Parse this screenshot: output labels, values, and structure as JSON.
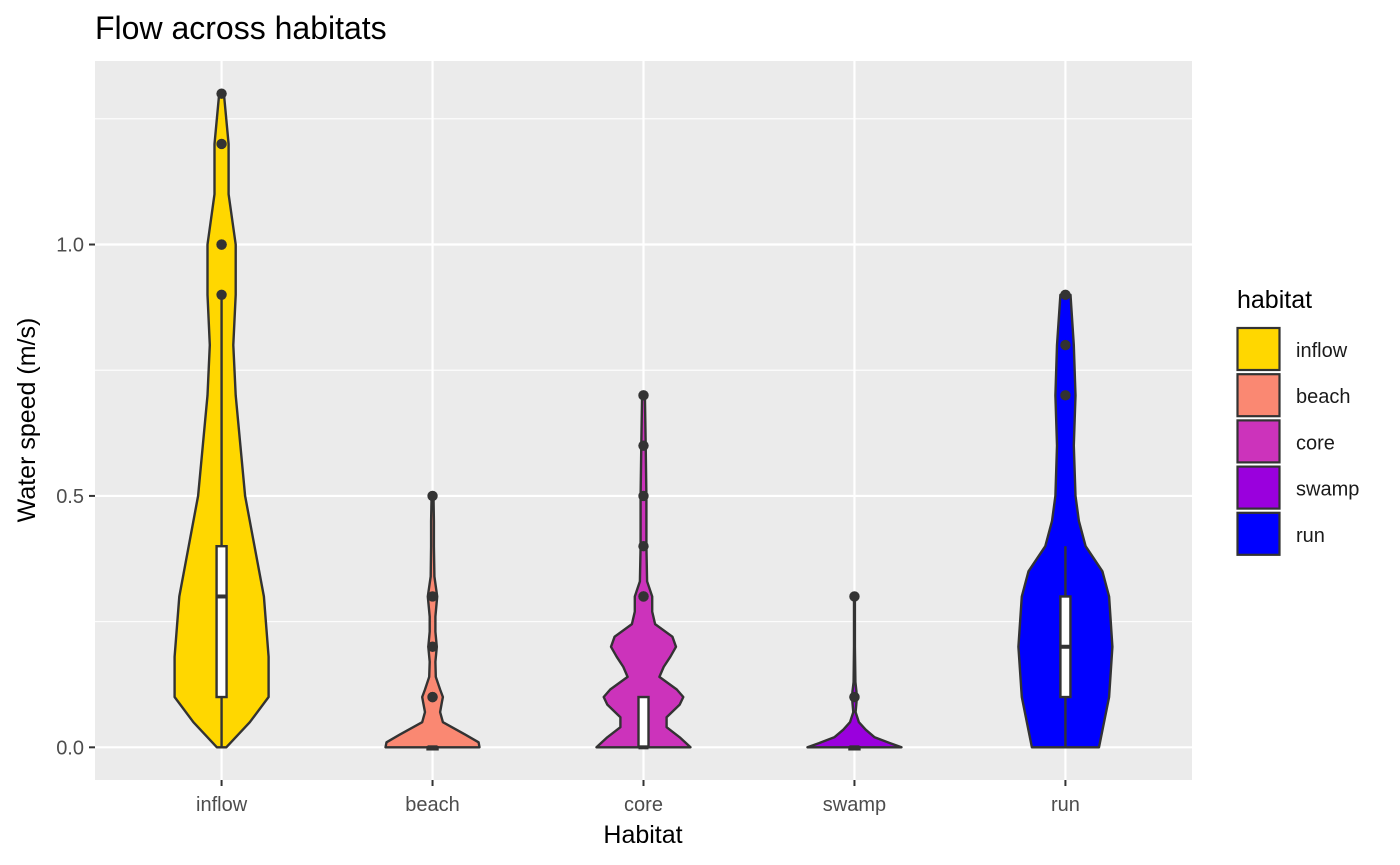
{
  "chart_data": {
    "type": "violin",
    "title": "Flow across habitats",
    "xlabel": "Habitat",
    "ylabel": "Water speed (m/s)",
    "ylim": [
      -0.065,
      1.365
    ],
    "yticks": [
      0.0,
      0.5,
      1.0
    ],
    "ytick_labels": [
      "0.0",
      "0.5",
      "1.0"
    ],
    "grid": true,
    "legend": {
      "title": "habitat",
      "position": "right",
      "entries": [
        "inflow",
        "beach",
        "core",
        "swamp",
        "run"
      ]
    },
    "categories": [
      "inflow",
      "beach",
      "core",
      "swamp",
      "run"
    ],
    "colors": {
      "inflow": "#FFD700",
      "beach": "#FA8872",
      "core": "#CC33BB",
      "swamp": "#9A00DD",
      "run": "#0000FF"
    },
    "series": [
      {
        "name": "inflow",
        "box": {
          "q1": 0.1,
          "median": 0.3,
          "q3": 0.4,
          "whisker_low": 0.0,
          "whisker_high": 0.9
        },
        "outliers": [
          1.3,
          1.2,
          1.0,
          1.0,
          0.9
        ],
        "density": [
          [
            0.0,
            0.01
          ],
          [
            0.05,
            0.06
          ],
          [
            0.1,
            0.1
          ],
          [
            0.18,
            0.1
          ],
          [
            0.3,
            0.09
          ],
          [
            0.4,
            0.07
          ],
          [
            0.5,
            0.05
          ],
          [
            0.6,
            0.04
          ],
          [
            0.7,
            0.03
          ],
          [
            0.8,
            0.025
          ],
          [
            0.9,
            0.03
          ],
          [
            1.0,
            0.03
          ],
          [
            1.1,
            0.015
          ],
          [
            1.2,
            0.015
          ],
          [
            1.3,
            0.005
          ]
        ]
      },
      {
        "name": "beach",
        "box": {
          "q1": 0.0,
          "median": 0.0,
          "q3": 0.0,
          "whisker_low": 0.0,
          "whisker_high": 0.0
        },
        "outliers": [
          0.5,
          0.3,
          0.2,
          0.1,
          0.1
        ],
        "density": [
          [
            0.0,
            1.0
          ],
          [
            0.01,
            0.98
          ],
          [
            0.025,
            0.7
          ],
          [
            0.05,
            0.22
          ],
          [
            0.07,
            0.16
          ],
          [
            0.09,
            0.2
          ],
          [
            0.1,
            0.22
          ],
          [
            0.115,
            0.16
          ],
          [
            0.14,
            0.07
          ],
          [
            0.17,
            0.06
          ],
          [
            0.2,
            0.09
          ],
          [
            0.23,
            0.06
          ],
          [
            0.26,
            0.06
          ],
          [
            0.3,
            0.1
          ],
          [
            0.34,
            0.04
          ],
          [
            0.4,
            0.03
          ],
          [
            0.45,
            0.03
          ],
          [
            0.5,
            0.02
          ]
        ]
      },
      {
        "name": "core",
        "box": {
          "q1": 0.0,
          "median": 0.0,
          "q3": 0.1,
          "whisker_low": 0.0,
          "whisker_high": 0.1
        },
        "outliers": [
          0.7,
          0.6,
          0.5,
          0.4,
          0.3,
          0.3
        ],
        "density": [
          [
            0.0,
            0.65
          ],
          [
            0.02,
            0.5
          ],
          [
            0.04,
            0.32
          ],
          [
            0.06,
            0.32
          ],
          [
            0.085,
            0.5
          ],
          [
            0.1,
            0.55
          ],
          [
            0.115,
            0.46
          ],
          [
            0.14,
            0.22
          ],
          [
            0.16,
            0.28
          ],
          [
            0.18,
            0.37
          ],
          [
            0.2,
            0.45
          ],
          [
            0.22,
            0.4
          ],
          [
            0.245,
            0.16
          ],
          [
            0.27,
            0.12
          ],
          [
            0.3,
            0.12
          ],
          [
            0.33,
            0.05
          ],
          [
            0.4,
            0.04
          ],
          [
            0.5,
            0.04
          ],
          [
            0.6,
            0.03
          ],
          [
            0.7,
            0.02
          ]
        ]
      },
      {
        "name": "swamp",
        "box": {
          "q1": 0.0,
          "median": 0.0,
          "q3": 0.0,
          "whisker_low": 0.0,
          "whisker_high": 0.0
        },
        "outliers": [
          0.3,
          0.1,
          0.1
        ],
        "density": [
          [
            0.0,
            2.1
          ],
          [
            0.008,
            1.6
          ],
          [
            0.02,
            0.9
          ],
          [
            0.035,
            0.5
          ],
          [
            0.05,
            0.2
          ],
          [
            0.07,
            0.05
          ],
          [
            0.09,
            0.09
          ],
          [
            0.1,
            0.1
          ],
          [
            0.11,
            0.09
          ],
          [
            0.13,
            0.04
          ],
          [
            0.2,
            0.02
          ],
          [
            0.3,
            0.02
          ]
        ]
      },
      {
        "name": "run",
        "box": {
          "q1": 0.1,
          "median": 0.2,
          "q3": 0.3,
          "whisker_low": 0.0,
          "whisker_high": 0.4
        },
        "outliers": [
          0.9,
          0.8,
          0.7
        ],
        "density": [
          [
            0.0,
            0.1
          ],
          [
            0.1,
            0.13
          ],
          [
            0.2,
            0.14
          ],
          [
            0.3,
            0.13
          ],
          [
            0.35,
            0.11
          ],
          [
            0.4,
            0.06
          ],
          [
            0.45,
            0.04
          ],
          [
            0.5,
            0.03
          ],
          [
            0.6,
            0.025
          ],
          [
            0.7,
            0.03
          ],
          [
            0.8,
            0.025
          ],
          [
            0.9,
            0.015
          ]
        ]
      }
    ]
  }
}
